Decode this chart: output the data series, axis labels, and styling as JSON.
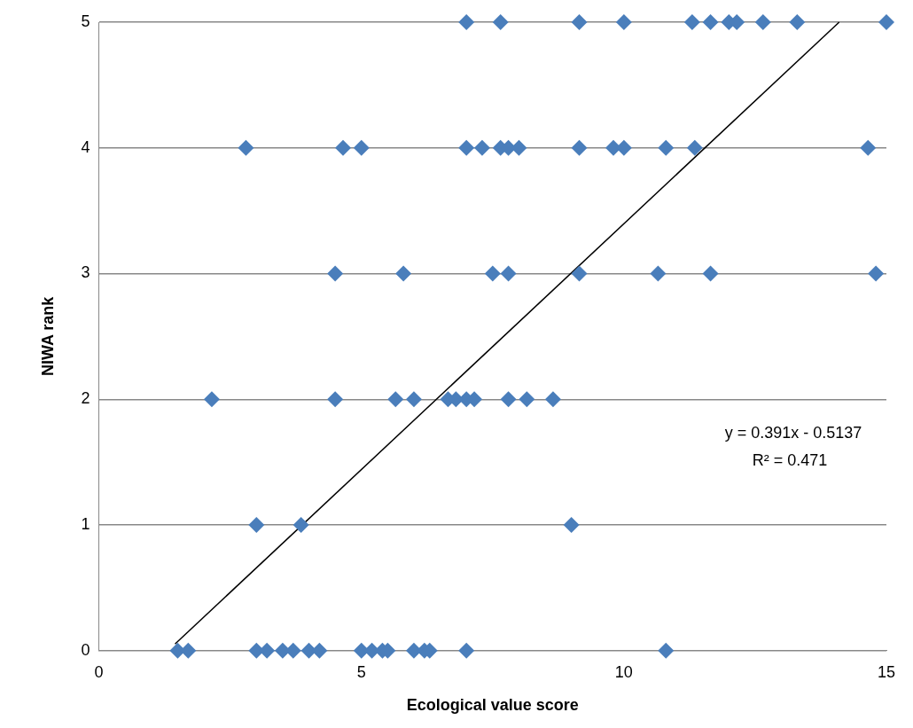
{
  "chart_data": {
    "type": "scatter",
    "xlabel": "Ecological value score",
    "ylabel": "NIWA rank",
    "xlim": [
      0,
      15
    ],
    "xticks": [
      0,
      5,
      10,
      15
    ],
    "ylim": [
      0,
      5
    ],
    "yticks": [
      0,
      1,
      2,
      3,
      4,
      5
    ],
    "grid": "y",
    "marker": "diamond",
    "series": [
      {
        "color": "#4a7ebb",
        "x": [
          1.5,
          1.7,
          3.0,
          3.2,
          3.5,
          3.7,
          4.0,
          4.2,
          5.0,
          5.2,
          5.4,
          5.5,
          6.0,
          6.2,
          6.3,
          7.0,
          10.8,
          3.0,
          3.85,
          9.0,
          2.15,
          4.5,
          5.65,
          6.0,
          6.65,
          6.8,
          7.0,
          7.15,
          7.8,
          8.15,
          8.65,
          4.5,
          5.8,
          7.5,
          7.8,
          9.15,
          10.65,
          11.65,
          14.8,
          2.8,
          4.65,
          5.0,
          7.0,
          7.3,
          7.65,
          7.8,
          8.0,
          9.15,
          9.8,
          10.0,
          10.8,
          11.35,
          14.65,
          7.0,
          7.65,
          9.15,
          10.0,
          11.3,
          11.65,
          12.0,
          12.15,
          12.65,
          13.3,
          15.0
        ],
        "values": [
          0,
          0,
          0,
          0,
          0,
          0,
          0,
          0,
          0,
          0,
          0,
          0,
          0,
          0,
          0,
          0,
          0,
          1,
          1,
          1,
          2,
          2,
          2,
          2,
          2,
          2,
          2,
          2,
          2,
          2,
          2,
          3,
          3,
          3,
          3,
          3,
          3,
          3,
          3,
          4,
          4,
          4,
          4,
          4,
          4,
          4,
          4,
          4,
          4,
          4,
          4,
          4,
          4,
          5,
          5,
          5,
          5,
          5,
          5,
          5,
          5,
          5,
          5,
          5
        ]
      },
      {
        "type": "line",
        "color": "#000000",
        "marker": "none",
        "line_style": "solid",
        "x": [
          1.45,
          14.1
        ],
        "values": [
          0.053,
          5.0
        ]
      }
    ],
    "annotations": [
      "y = 0.391x - 0.5137",
      "R² = 0.471"
    ]
  }
}
